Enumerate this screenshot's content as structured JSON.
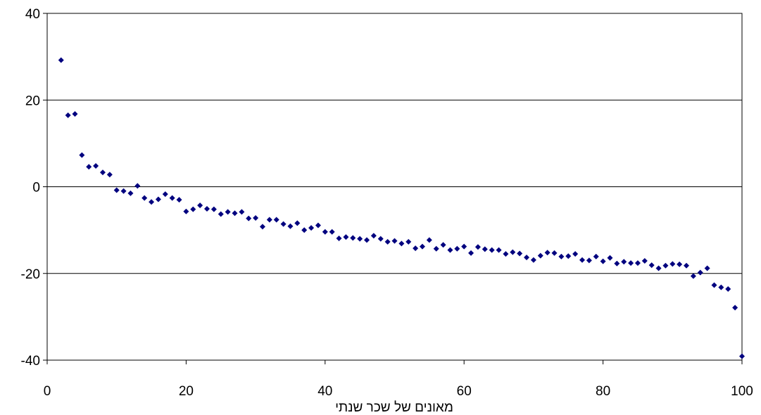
{
  "chart_data": {
    "type": "scatter",
    "title": "",
    "xlabel": "מאונים של שכר שנתי",
    "ylabel": "",
    "xlim": [
      0,
      100
    ],
    "ylim": [
      -40,
      40
    ],
    "x_ticks": [
      0,
      20,
      40,
      60,
      80,
      100
    ],
    "y_ticks": [
      40,
      20,
      0,
      -20,
      -40
    ],
    "x_tick_labels": [
      "0",
      "20",
      "40",
      "60",
      "80",
      "100"
    ],
    "y_tick_labels": [
      "40",
      "20",
      "0",
      "-20",
      "-40"
    ],
    "grid": "horizontal",
    "marker": "diamond",
    "color": "#00007f",
    "series": [
      {
        "x": [
          2,
          3,
          4,
          5,
          6,
          7,
          8,
          9,
          10,
          11,
          12,
          13,
          14,
          15,
          16,
          17,
          18,
          19,
          20,
          21,
          22,
          23,
          24,
          25,
          26,
          27,
          28,
          29,
          30,
          31,
          32,
          33,
          34,
          35,
          36,
          37,
          38,
          39,
          40,
          41,
          42,
          43,
          44,
          45,
          46,
          47,
          48,
          49,
          50,
          51,
          52,
          53,
          54,
          55,
          56,
          57,
          58,
          59,
          60,
          61,
          62,
          63,
          64,
          65,
          66,
          67,
          68,
          69,
          70,
          71,
          72,
          73,
          74,
          75,
          76,
          77,
          78,
          79,
          80,
          81,
          82,
          83,
          84,
          85,
          86,
          87,
          88,
          89,
          90,
          91,
          92,
          93,
          94,
          95,
          96,
          97,
          98,
          99,
          100
        ],
        "y": [
          29.2,
          16.5,
          16.8,
          7.3,
          4.6,
          4.8,
          3.3,
          2.8,
          -0.8,
          -1.0,
          -1.5,
          0.2,
          -2.6,
          -3.5,
          -2.9,
          -1.7,
          -2.6,
          -3.0,
          -5.7,
          -5.2,
          -4.3,
          -5.1,
          -5.2,
          -6.3,
          -5.8,
          -6.1,
          -5.8,
          -7.3,
          -7.2,
          -9.2,
          -7.6,
          -7.6,
          -8.6,
          -9.1,
          -8.4,
          -10.0,
          -9.5,
          -8.9,
          -10.4,
          -10.4,
          -11.9,
          -11.6,
          -11.8,
          -12.0,
          -12.3,
          -11.3,
          -12.0,
          -12.7,
          -12.5,
          -13.1,
          -12.7,
          -14.2,
          -13.8,
          -12.3,
          -14.3,
          -13.4,
          -14.6,
          -14.3,
          -13.8,
          -15.3,
          -13.9,
          -14.4,
          -14.6,
          -14.6,
          -15.5,
          -15.1,
          -15.4,
          -16.3,
          -16.9,
          -15.9,
          -15.2,
          -15.3,
          -16.1,
          -16.0,
          -15.5,
          -16.9,
          -17.0,
          -16.1,
          -17.2,
          -16.4,
          -17.7,
          -17.3,
          -17.6,
          -17.6,
          -17.1,
          -18.1,
          -18.8,
          -18.2,
          -17.8,
          -17.9,
          -18.2,
          -20.6,
          -19.8,
          -18.8,
          -22.7,
          -23.2,
          -23.6,
          -27.9,
          -39.1
        ]
      }
    ]
  }
}
